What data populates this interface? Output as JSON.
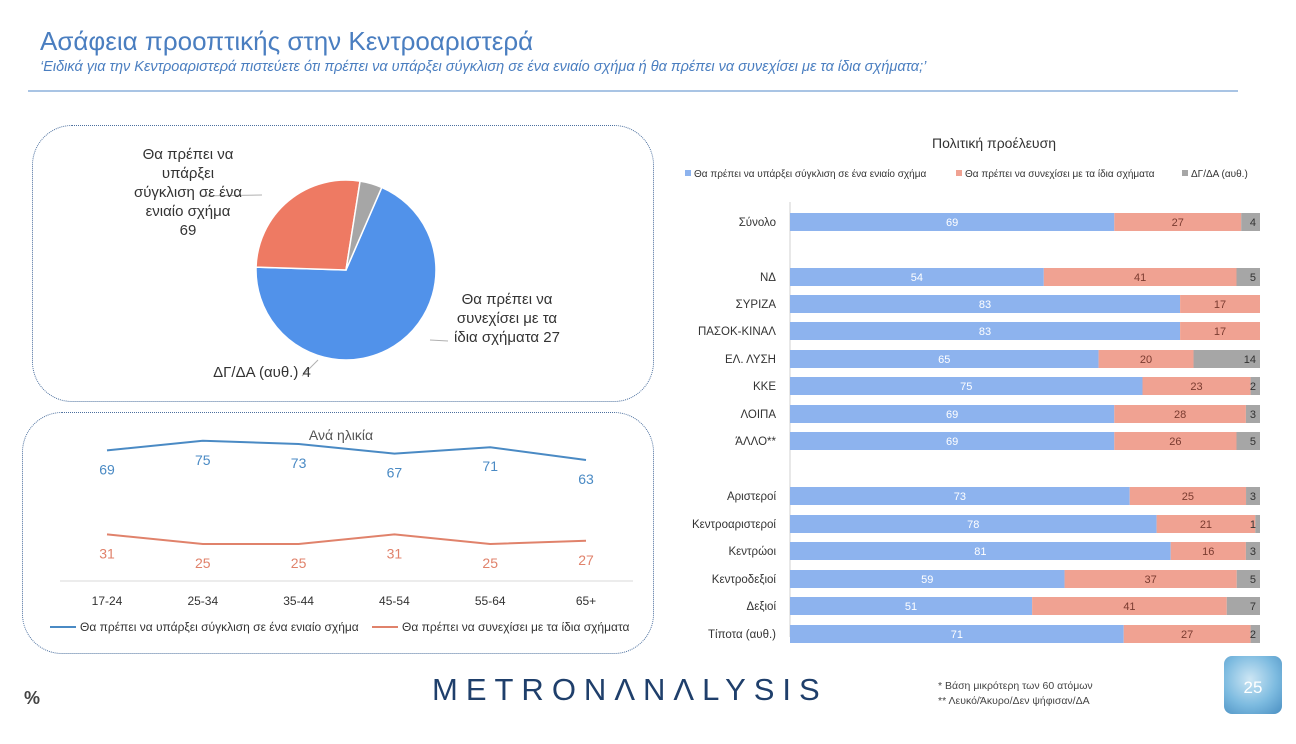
{
  "header": {
    "title": "Ασάφεια προοπτικής στην Κεντροαριστερά",
    "subtitle": "‘Ειδικά για την Κεντροαριστερά πιστεύετε ότι πρέπει να υπάρξει σύγκλιση σε ένα ενιαίο σχήμα ή θα πρέπει να συνεχίσει με τα ίδια σχήματα;’"
  },
  "chart_data": [
    {
      "type": "pie",
      "labels": [
        "Θα πρέπει να υπάρξει σύγκλιση σε ένα ενιαίο σχήμα",
        "Θα πρέπει να συνεχίσει με τα ίδια σχήματα",
        "ΔΓ/ΔΑ (αυθ.)"
      ],
      "values": [
        69,
        27,
        4
      ],
      "colors": [
        "#5192ea",
        "#ee7a63",
        "#a6a6a6"
      ],
      "slice_labels": [
        [
          "Θα πρέπει να",
          "υπάρξει",
          "σύγκλιση σε ένα",
          "ενιαίο σχήμα",
          "69"
        ],
        [
          "Θα πρέπει να",
          "συνεχίσει με τα",
          "ίδια σχήματα 27"
        ],
        [
          "ΔΓ/ΔΑ (αυθ.) 4"
        ]
      ]
    },
    {
      "type": "line",
      "title": "Ανά ηλικία",
      "categories": [
        "17-24",
        "25-34",
        "35-44",
        "45-54",
        "55-64",
        "65+"
      ],
      "series": [
        {
          "name": "Θα πρέπει να υπάρξει σύγκλιση σε ένα ενιαίο σχήμα",
          "values": [
            69,
            75,
            73,
            67,
            71,
            63
          ],
          "color": "#4a8ac4"
        },
        {
          "name": "Θα πρέπει να συνεχίσει με τα ίδια σχήματα",
          "values": [
            31,
            25,
            25,
            31,
            25,
            27
          ],
          "color": "#e0826b"
        }
      ]
    },
    {
      "type": "bar",
      "stacked": true,
      "orientation": "horizontal",
      "title": "Πολιτική προέλευση",
      "xlim": [
        0,
        100
      ],
      "legend_position": "top",
      "series": [
        {
          "name": "Θα πρέπει να υπάρξει σύγκλιση σε ένα ενιαίο σχήμα",
          "color": "#8db3ee"
        },
        {
          "name": "Θα πρέπει να συνεχίσει με τα ίδια σχήματα",
          "color": "#f0a292"
        },
        {
          "name": "ΔΓ/ΔΑ (αυθ.)",
          "color": "#a6a6a6"
        }
      ],
      "groups": [
        [
          {
            "label": "Σύνολο",
            "values": [
              69,
              27,
              4
            ]
          }
        ],
        [
          {
            "label": "ΝΔ",
            "values": [
              54,
              41,
              5
            ]
          },
          {
            "label": "ΣΥΡΙΖΑ",
            "values": [
              83,
              17,
              0
            ]
          },
          {
            "label": "ΠΑΣΟΚ-ΚΙΝΑΛ",
            "values": [
              83,
              17,
              0
            ]
          },
          {
            "label": "ΕΛ. ΛΥΣΗ",
            "values": [
              65,
              20,
              14
            ]
          },
          {
            "label": "ΚΚΕ",
            "values": [
              75,
              23,
              2
            ]
          },
          {
            "label": "ΛΟΙΠΑ",
            "values": [
              69,
              28,
              3
            ]
          },
          {
            "label": "ΆΛΛΟ**",
            "values": [
              69,
              26,
              5
            ]
          }
        ],
        [
          {
            "label": "Αριστεροί",
            "values": [
              73,
              25,
              3
            ]
          },
          {
            "label": "Κεντροαριστεροί",
            "values": [
              78,
              21,
              1
            ]
          },
          {
            "label": "Κεντρώοι",
            "values": [
              81,
              16,
              3
            ]
          },
          {
            "label": "Κεντροδεξιοί",
            "values": [
              59,
              37,
              5
            ]
          },
          {
            "label": "Δεξιοί",
            "values": [
              51,
              41,
              7
            ]
          },
          {
            "label": "Τίποτα (αυθ.)",
            "values": [
              71,
              27,
              2
            ]
          }
        ]
      ]
    }
  ],
  "footer": {
    "logo": "METRONΛNΛLYSIS",
    "percent_symbol": "%",
    "notes": [
      "*  Βάση μικρότερη των 60 ατόμων",
      "** Λευκό/Άκυρο/Δεν ψήφισαν/ΔΑ"
    ],
    "page_number": "25"
  }
}
